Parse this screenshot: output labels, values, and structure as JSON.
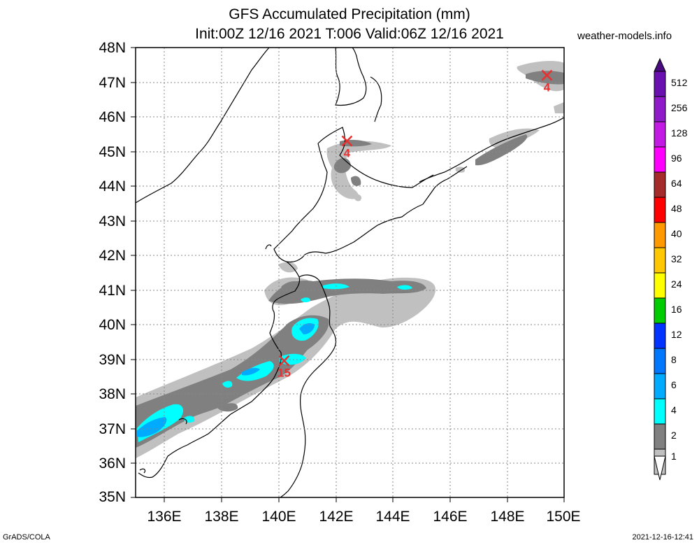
{
  "title": {
    "line1": "GFS Accumulated Precipitation (mm)",
    "line2": "Init:00Z 12/16 2021 T:006 Valid:06Z 12/16 2021"
  },
  "site": "weather-models.info",
  "footer": {
    "left": "GrADS/COLA",
    "right": "2021-12-16-12:41"
  },
  "axes": {
    "lat_labels": [
      "48N",
      "47N",
      "46N",
      "45N",
      "44N",
      "43N",
      "42N",
      "41N",
      "40N",
      "39N",
      "38N",
      "37N",
      "36N",
      "35N"
    ],
    "lon_labels": [
      "136E",
      "138E",
      "140E",
      "142E",
      "144E",
      "146E",
      "148E",
      "150E"
    ]
  },
  "colorbar": {
    "levels": [
      "512",
      "256",
      "128",
      "96",
      "64",
      "48",
      "40",
      "32",
      "24",
      "16",
      "12",
      "8",
      "6",
      "4",
      "2",
      "1"
    ],
    "colors": [
      "#6a0fb0",
      "#8f1ac9",
      "#c31ae3",
      "#ff00ff",
      "#a52a2a",
      "#ff0000",
      "#ff9900",
      "#ffc800",
      "#ffff00",
      "#00cc00",
      "#0033ff",
      "#0077ff",
      "#00aaff",
      "#00ffff",
      "#808080",
      "#c0c0c0"
    ]
  },
  "markers": [
    {
      "label": "4",
      "lat": 47.2,
      "lon": 149.4
    },
    {
      "label": "4",
      "lat": 45.3,
      "lon": 142.4
    },
    {
      "label": "15",
      "lat": 38.95,
      "lon": 140.2
    }
  ]
}
